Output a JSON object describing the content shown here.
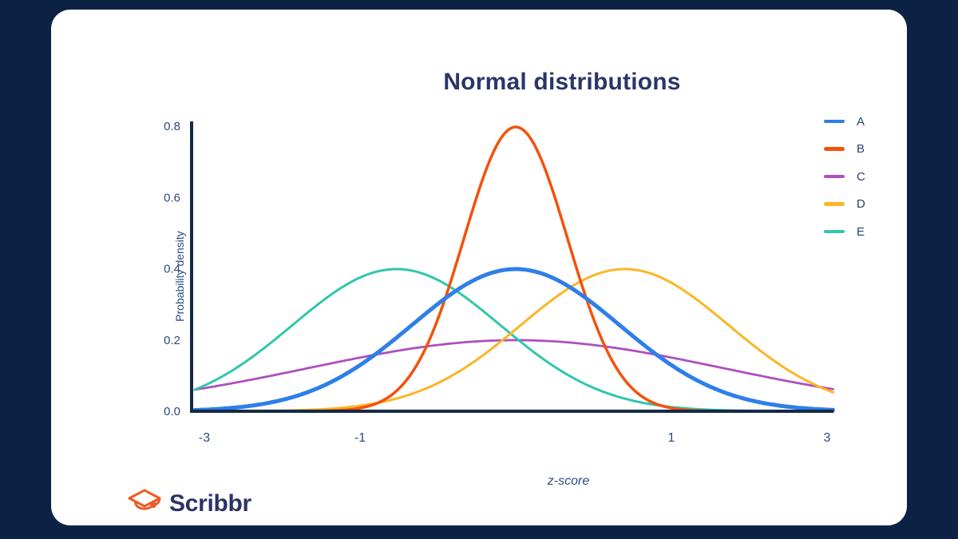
{
  "title": "Normal distributions",
  "chart_data": {
    "type": "line",
    "title": "Normal distributions",
    "xlabel": "z-score",
    "ylabel": "Probability density",
    "x_tick_labels": [
      "-3",
      "-1",
      "1",
      "3"
    ],
    "y_tick_labels": [
      "0.0",
      "0.2",
      "0.4",
      "0.6",
      "0.8"
    ],
    "xlim": [
      -3.1,
      3.1
    ],
    "ylim": [
      0,
      0.8
    ],
    "grid": false,
    "legend_position": "upper right",
    "series": [
      {
        "name": "A",
        "distribution": "normal",
        "mean": 0,
        "sd": 1,
        "peak_density": 0.4,
        "color": "#2e7fe8",
        "stroke_width": 5
      },
      {
        "name": "B",
        "distribution": "normal",
        "mean": 0,
        "sd": 0.5,
        "peak_density": 0.8,
        "color": "#f4510c",
        "stroke_width": 3.5
      },
      {
        "name": "C",
        "distribution": "normal",
        "mean": 0,
        "sd": 2,
        "peak_density": 0.2,
        "color": "#ad4fc0",
        "stroke_width": 2.8
      },
      {
        "name": "D",
        "distribution": "normal",
        "mean": 1.05,
        "sd": 1,
        "peak_density": 0.4,
        "color": "#fcb525",
        "stroke_width": 3
      },
      {
        "name": "E",
        "distribution": "normal",
        "mean": -1.15,
        "sd": 1,
        "peak_density": 0.4,
        "color": "#2fc7ac",
        "stroke_width": 3
      }
    ]
  },
  "footer": {
    "brand": "Scribbr",
    "logo": "graduation-cap-icon"
  },
  "colors": {
    "background": "#0c2245",
    "card": "#ffffff",
    "title": "#2b3666",
    "axis": "#152947",
    "tick_label": "#2b4a80",
    "axis_label": "#2b4a80",
    "legend_label": "#2b3f72",
    "brand_text": "#2b3365",
    "logo_orange": "#ee5b28"
  }
}
